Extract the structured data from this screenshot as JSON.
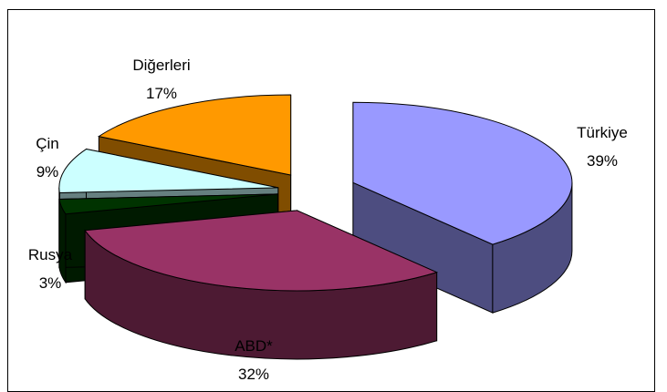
{
  "chart_data": {
    "type": "pie",
    "style": "3d-exploded",
    "slices": [
      {
        "label": "Türkiye",
        "pct_label": "39%",
        "value": 39,
        "color": "#9999ff"
      },
      {
        "label": "ABD*",
        "pct_label": "32%",
        "value": 32,
        "color": "#993366"
      },
      {
        "label": "Rusya",
        "pct_label": "3%",
        "value": 3,
        "color": "#003300"
      },
      {
        "label": "Çin",
        "pct_label": "9%",
        "value": 9,
        "color": "#ccffff"
      },
      {
        "label": "Diğerleri",
        "pct_label": "17%",
        "value": 17,
        "color": "#ff9900"
      }
    ],
    "legend": "none"
  }
}
